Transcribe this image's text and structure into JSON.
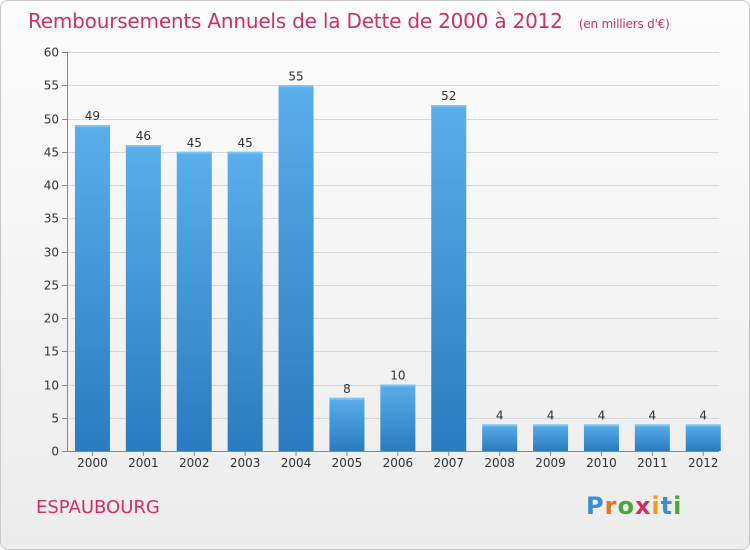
{
  "chart_data": {
    "type": "bar",
    "title": "Remboursements Annuels de la Dette de 2000 à 2012",
    "subtitle": "(en milliers d'€)",
    "categories": [
      "2000",
      "2001",
      "2002",
      "2003",
      "2004",
      "2005",
      "2006",
      "2007",
      "2008",
      "2009",
      "2010",
      "2011",
      "2012"
    ],
    "values": [
      49,
      46,
      45,
      45,
      55,
      8,
      10,
      52,
      4,
      4,
      4,
      4,
      4
    ],
    "ylim": [
      0,
      60
    ],
    "yticks": [
      0,
      5,
      10,
      15,
      20,
      25,
      30,
      35,
      40,
      45,
      50,
      55,
      60
    ],
    "grid": true,
    "bar_color": "#3f95d6",
    "bar_color_light": "#5aaeea",
    "bar_color_dark": "#2a7bbf"
  },
  "footer": {
    "city": "ESPAUBOURG",
    "logo_letters": [
      {
        "char": "P",
        "color": "#3a8fd0"
      },
      {
        "char": "r",
        "color": "#e8731a"
      },
      {
        "char": "o",
        "color": "#49a83a"
      },
      {
        "char": "x",
        "color": "#d0305f"
      },
      {
        "char": "i",
        "color": "#e8a11a"
      },
      {
        "char": "t",
        "color": "#3a8fd0"
      },
      {
        "char": "i",
        "color": "#49a83a"
      }
    ]
  },
  "colors": {
    "title": "#d0305f",
    "grid": "#d7d7d7",
    "axis": "#888888"
  }
}
